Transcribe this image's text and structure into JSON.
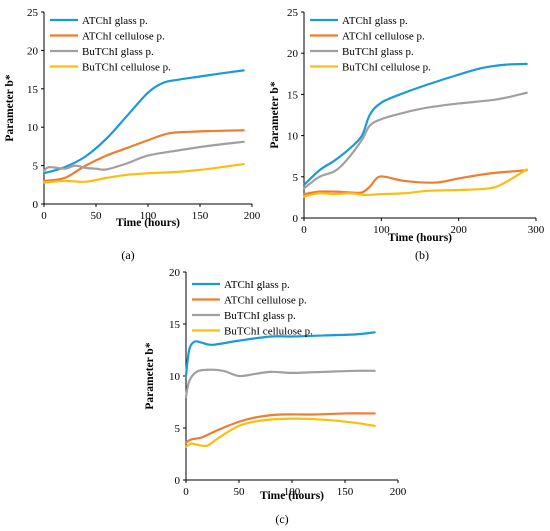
{
  "colors": {
    "atchi_glass": "#1b9ad6",
    "atchi_cellulose": "#f07c30",
    "butchi_glass": "#a0a0a0",
    "butchi_cellulose": "#fbbd0e"
  },
  "chart_data": [
    {
      "id": "a",
      "type": "line",
      "panel_label": "(a)",
      "xlabel": "Time (hours)",
      "ylabel": "Parameter b*",
      "xlim": [
        0,
        200
      ],
      "ylim": [
        0,
        25
      ],
      "xticks": [
        0,
        50,
        100,
        150,
        200
      ],
      "yticks": [
        0,
        5,
        10,
        15,
        20,
        25
      ],
      "legend_position": "top-left",
      "series": [
        {
          "name": "ATChI glass p.",
          "color_key": "atchi_glass",
          "x": [
            0,
            20,
            40,
            60,
            80,
            100,
            115,
            130,
            150,
            170,
            192
          ],
          "y": [
            4.0,
            4.8,
            6.2,
            8.5,
            11.5,
            14.5,
            15.8,
            16.2,
            16.6,
            17.0,
            17.4
          ]
        },
        {
          "name": "ATChI cellulose p.",
          "color_key": "atchi_cellulose",
          "x": [
            0,
            20,
            40,
            60,
            80,
            100,
            120,
            140,
            160,
            192
          ],
          "y": [
            3.0,
            3.4,
            5.0,
            6.3,
            7.3,
            8.3,
            9.2,
            9.4,
            9.5,
            9.6
          ]
        },
        {
          "name": "BuTChI glass p.",
          "color_key": "butchi_glass",
          "x": [
            0,
            5,
            20,
            30,
            40,
            50,
            60,
            80,
            100,
            130,
            160,
            192
          ],
          "y": [
            4.3,
            4.8,
            4.6,
            5.0,
            4.7,
            4.6,
            4.5,
            5.3,
            6.3,
            7.0,
            7.6,
            8.1
          ]
        },
        {
          "name": "BuTChI cellulose p.",
          "color_key": "butchi_cellulose",
          "x": [
            0,
            20,
            40,
            60,
            80,
            100,
            130,
            160,
            192
          ],
          "y": [
            2.8,
            3.0,
            2.9,
            3.4,
            3.8,
            4.0,
            4.2,
            4.6,
            5.2
          ]
        }
      ]
    },
    {
      "id": "b",
      "type": "line",
      "panel_label": "(b)",
      "xlabel": "Time (hours)",
      "ylabel": "Parameter b*",
      "xlim": [
        0,
        300
      ],
      "ylim": [
        0,
        25
      ],
      "xticks": [
        0,
        100,
        200,
        300
      ],
      "yticks": [
        0,
        5,
        10,
        15,
        20,
        25
      ],
      "legend_position": "top-left",
      "series": [
        {
          "name": "ATChI glass p.",
          "color_key": "atchi_glass",
          "x": [
            0,
            20,
            40,
            60,
            75,
            85,
            100,
            130,
            160,
            200,
            230,
            260,
            288
          ],
          "y": [
            4.0,
            5.8,
            7.0,
            8.5,
            10.0,
            12.5,
            14.0,
            15.2,
            16.2,
            17.4,
            18.2,
            18.6,
            18.7
          ]
        },
        {
          "name": "ATChI cellulose p.",
          "color_key": "atchi_cellulose",
          "x": [
            0,
            20,
            40,
            60,
            75,
            85,
            95,
            105,
            130,
            170,
            200,
            240,
            288
          ],
          "y": [
            2.9,
            3.2,
            3.2,
            3.1,
            3.1,
            3.8,
            4.9,
            5.0,
            4.5,
            4.3,
            4.8,
            5.4,
            5.8
          ]
        },
        {
          "name": "BuTChI glass p.",
          "color_key": "butchi_glass",
          "x": [
            0,
            20,
            40,
            55,
            75,
            85,
            100,
            130,
            160,
            200,
            250,
            288
          ],
          "y": [
            3.6,
            5.0,
            5.7,
            7.0,
            9.5,
            11.2,
            12.0,
            12.8,
            13.4,
            13.9,
            14.4,
            15.2
          ]
        },
        {
          "name": "BuTChI cellulose p.",
          "color_key": "butchi_cellulose",
          "x": [
            0,
            20,
            40,
            60,
            80,
            100,
            130,
            160,
            200,
            240,
            260,
            288
          ],
          "y": [
            2.6,
            3.0,
            2.9,
            3.0,
            2.8,
            2.9,
            3.0,
            3.3,
            3.4,
            3.6,
            4.3,
            5.9
          ]
        }
      ]
    },
    {
      "id": "c",
      "type": "line",
      "panel_label": "(c)",
      "xlabel": "Time (hours)",
      "ylabel": "Parameter b*",
      "xlim": [
        0,
        200
      ],
      "ylim": [
        0,
        20
      ],
      "xticks": [
        0,
        50,
        100,
        150,
        200
      ],
      "yticks": [
        0,
        5,
        10,
        15,
        20
      ],
      "legend_position": "top-left",
      "series": [
        {
          "name": "ATChI glass p.",
          "color_key": "atchi_glass",
          "x": [
            0,
            3,
            8,
            15,
            25,
            50,
            80,
            100,
            130,
            160,
            178
          ],
          "y": [
            10.0,
            12.5,
            13.3,
            13.2,
            13.0,
            13.4,
            13.8,
            13.8,
            13.9,
            14.0,
            14.2
          ]
        },
        {
          "name": "ATChI cellulose p.",
          "color_key": "atchi_cellulose",
          "x": [
            0,
            5,
            15,
            30,
            50,
            70,
            90,
            120,
            150,
            178
          ],
          "y": [
            3.6,
            3.9,
            4.1,
            4.8,
            5.6,
            6.1,
            6.3,
            6.3,
            6.4,
            6.4
          ]
        },
        {
          "name": "BuTChI glass p.",
          "color_key": "butchi_glass",
          "x": [
            0,
            3,
            10,
            20,
            35,
            50,
            65,
            80,
            100,
            130,
            160,
            178
          ],
          "y": [
            8.0,
            9.5,
            10.4,
            10.6,
            10.5,
            10.0,
            10.2,
            10.4,
            10.3,
            10.4,
            10.5,
            10.5
          ]
        },
        {
          "name": "BuTChI cellulose p.",
          "color_key": "butchi_cellulose",
          "x": [
            0,
            5,
            10,
            20,
            30,
            50,
            70,
            100,
            130,
            160,
            178
          ],
          "y": [
            3.2,
            3.5,
            3.4,
            3.3,
            4.0,
            5.2,
            5.7,
            5.9,
            5.8,
            5.5,
            5.2
          ]
        }
      ]
    }
  ]
}
